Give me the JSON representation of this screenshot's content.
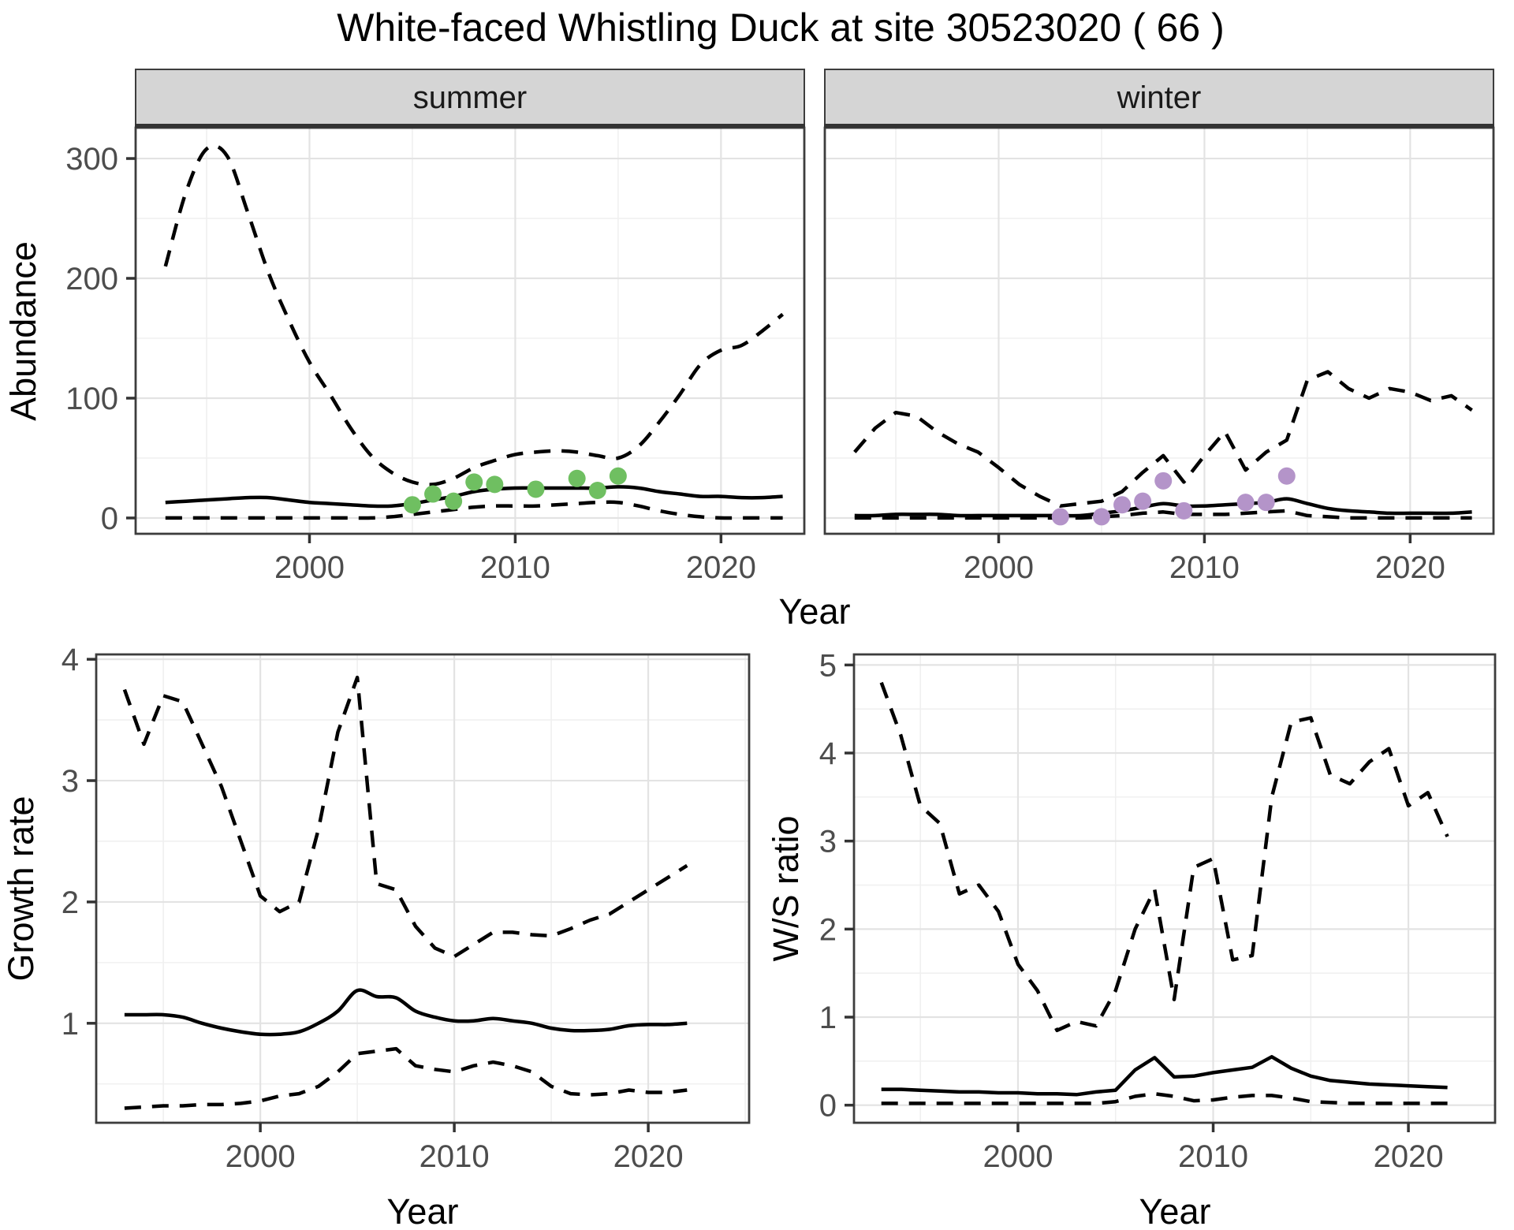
{
  "title": "White-faced Whistling Duck at site 30523020 ( 66 )",
  "colors": {
    "fit_line": "#000000",
    "ci_line": "#000000",
    "summer_points": "#6fbf61",
    "winter_points": "#b494c9",
    "strip_background": "#d5d5d5",
    "strip_text": "#1a1a1a",
    "panel_border": "#3d3d3d",
    "grid_major": "#e3e3e3",
    "grid_minor": "#f0f0f0",
    "tick_label": "#4d4d4d",
    "axis_title": "#000000",
    "title": "#000000"
  },
  "chart_data": {
    "type": "line",
    "title": "White-faced Whistling Duck at site 30523020 ( 66 )",
    "description": "Four-panel population model figure: modeled abundance (solid fit line, dashed 95% CI lines, observed counts as points) faceted by season, plus growth rate and winter/summer ratio panels.",
    "legend_position": "none",
    "grid": "on",
    "axis_labels": [
      {
        "id": "abundance-axis-label",
        "text": "Abundance"
      },
      {
        "id": "top-year-axis-label",
        "text": "Year"
      },
      {
        "id": "growth-rate-axis-label",
        "text": "Growth rate"
      },
      {
        "id": "growth-year-axis-label",
        "text": "Year"
      },
      {
        "id": "ws-ratio-axis-label",
        "text": "W/S ratio"
      },
      {
        "id": "ws-year-axis-label",
        "text": "Year"
      }
    ],
    "panels": [
      {
        "id": "summer",
        "facet": "summer",
        "x_range": [
          1991.55,
          2024.05
        ],
        "y_range": [
          -13.2,
          325.7
        ],
        "x_ticks": [
          2000,
          2010,
          2020
        ],
        "x_minor": [
          1995,
          2005,
          2015
        ],
        "y_ticks": [
          0,
          100,
          200,
          300
        ],
        "y_minor": [
          50,
          150,
          250
        ],
        "show_y_tick_labels": true,
        "smooth_fit": true,
        "smooth_ci": true,
        "series": {
          "years": [
            1993,
            1994,
            1995,
            1996,
            1997,
            1998,
            1999,
            2000,
            2001,
            2002,
            2003,
            2004,
            2005,
            2006,
            2007,
            2008,
            2009,
            2010,
            2011,
            2012,
            2013,
            2014,
            2015,
            2016,
            2017,
            2018,
            2019,
            2020,
            2021,
            2022,
            2023
          ],
          "fit": [
            13,
            14,
            15,
            16,
            17,
            17,
            15,
            13,
            12,
            11,
            10,
            10,
            12,
            15,
            18,
            22,
            24,
            25,
            25,
            25,
            25,
            25,
            26,
            25,
            22,
            20,
            18,
            18,
            17,
            17,
            18
          ],
          "upper": [
            210,
            272,
            308,
            302,
            255,
            205,
            165,
            130,
            103,
            75,
            52,
            38,
            30,
            28,
            33,
            42,
            48,
            53,
            55,
            56,
            55,
            52,
            50,
            60,
            80,
            103,
            128,
            140,
            144,
            156,
            170
          ],
          "lower": [
            0,
            0,
            0,
            0,
            0,
            0,
            0,
            0,
            0,
            0,
            0,
            1,
            3,
            5,
            7,
            9,
            10,
            10,
            10,
            11,
            12,
            13,
            13,
            10,
            6,
            3,
            1,
            0,
            0,
            0,
            0
          ]
        },
        "points": {
          "color_key": "summer_points",
          "data": [
            [
              2005,
              11
            ],
            [
              2006,
              20
            ],
            [
              2007,
              14
            ],
            [
              2008,
              30
            ],
            [
              2009,
              28
            ],
            [
              2011,
              24
            ],
            [
              2013,
              33
            ],
            [
              2014,
              23
            ],
            [
              2015,
              35
            ]
          ]
        }
      },
      {
        "id": "winter",
        "facet": "winter",
        "x_range": [
          1991.55,
          2024.05
        ],
        "y_range": [
          -13.2,
          325.7
        ],
        "x_ticks": [
          2000,
          2010,
          2020
        ],
        "x_minor": [
          1995,
          2005,
          2015
        ],
        "y_ticks": [
          0,
          100,
          200,
          300
        ],
        "y_minor": [
          50,
          150,
          250
        ],
        "show_y_tick_labels": false,
        "smooth_fit": true,
        "smooth_ci": false,
        "series": {
          "years": [
            1993,
            1994,
            1995,
            1996,
            1997,
            1998,
            1999,
            2000,
            2001,
            2002,
            2003,
            2004,
            2005,
            2006,
            2007,
            2008,
            2009,
            2010,
            2011,
            2012,
            2013,
            2014,
            2015,
            2016,
            2017,
            2018,
            2019,
            2020,
            2021,
            2022,
            2023
          ],
          "fit": [
            2,
            2,
            3,
            3,
            3,
            2,
            2,
            2,
            2,
            2,
            2,
            2,
            4,
            6,
            9,
            12,
            10,
            10,
            11,
            12,
            13,
            16,
            12,
            8,
            6,
            5,
            4,
            4,
            4,
            4,
            5
          ],
          "upper": [
            55,
            75,
            88,
            85,
            72,
            62,
            55,
            42,
            28,
            18,
            10,
            12,
            14,
            22,
            38,
            52,
            30,
            52,
            72,
            40,
            55,
            65,
            115,
            122,
            108,
            100,
            108,
            105,
            98,
            102,
            90
          ],
          "lower": [
            0,
            0,
            0,
            0,
            0,
            0,
            0,
            0,
            0,
            0,
            0,
            0,
            1,
            2,
            4,
            5,
            3,
            3,
            3,
            4,
            5,
            6,
            2,
            1,
            0,
            0,
            0,
            0,
            0,
            0,
            0
          ]
        },
        "points": {
          "color_key": "winter_points",
          "data": [
            [
              2003,
              1
            ],
            [
              2005,
              1
            ],
            [
              2006,
              11
            ],
            [
              2007,
              14
            ],
            [
              2008,
              31
            ],
            [
              2009,
              6
            ],
            [
              2012,
              13
            ],
            [
              2013,
              13
            ],
            [
              2014,
              35
            ]
          ]
        }
      },
      {
        "id": "growth",
        "facet": null,
        "x_range": [
          1991.54,
          2025.2
        ],
        "y_range": [
          0.18,
          4.04
        ],
        "x_ticks": [
          2000,
          2010,
          2020
        ],
        "x_minor": [
          1995,
          2005,
          2015,
          2025
        ],
        "y_ticks": [
          1,
          2,
          3,
          4
        ],
        "y_minor": [
          0.5,
          1.5,
          2.5,
          3.5
        ],
        "show_y_tick_labels": true,
        "smooth_fit": true,
        "smooth_ci": false,
        "series": {
          "years": [
            1993,
            1994,
            1995,
            1996,
            1997,
            1998,
            1999,
            2000,
            2001,
            2002,
            2003,
            2004,
            2005,
            2006,
            2007,
            2008,
            2009,
            2010,
            2011,
            2012,
            2013,
            2014,
            2015,
            2016,
            2017,
            2018,
            2019,
            2020,
            2021,
            2022
          ],
          "fit": [
            1.07,
            1.07,
            1.07,
            1.05,
            1.0,
            0.96,
            0.93,
            0.91,
            0.91,
            0.93,
            1.0,
            1.1,
            1.27,
            1.22,
            1.21,
            1.1,
            1.05,
            1.02,
            1.02,
            1.04,
            1.02,
            1.0,
            0.96,
            0.94,
            0.94,
            0.95,
            0.98,
            0.99,
            0.99,
            1.0
          ],
          "upper": [
            3.75,
            3.3,
            3.7,
            3.65,
            3.3,
            2.95,
            2.5,
            2.05,
            1.92,
            2.0,
            2.6,
            3.4,
            3.85,
            2.15,
            2.1,
            1.8,
            1.62,
            1.55,
            1.65,
            1.75,
            1.75,
            1.73,
            1.72,
            1.78,
            1.85,
            1.9,
            2.0,
            2.1,
            2.2,
            2.3
          ],
          "lower": [
            0.3,
            0.31,
            0.32,
            0.32,
            0.33,
            0.33,
            0.34,
            0.36,
            0.4,
            0.42,
            0.48,
            0.6,
            0.75,
            0.77,
            0.79,
            0.65,
            0.62,
            0.6,
            0.65,
            0.68,
            0.65,
            0.6,
            0.48,
            0.42,
            0.41,
            0.42,
            0.45,
            0.43,
            0.43,
            0.45
          ]
        },
        "points": null
      },
      {
        "id": "ws",
        "facet": null,
        "x_range": [
          1991.6,
          2024.44
        ],
        "y_range": [
          -0.2,
          5.12
        ],
        "x_ticks": [
          2000,
          2010,
          2020
        ],
        "x_minor": [
          1995,
          2005,
          2015
        ],
        "y_ticks": [
          0,
          1,
          2,
          3,
          4,
          5
        ],
        "y_minor": [
          0.5,
          1.5,
          2.5,
          3.5,
          4.5
        ],
        "show_y_tick_labels": true,
        "smooth_fit": false,
        "smooth_ci": false,
        "series": {
          "years": [
            1993,
            1994,
            1995,
            1996,
            1997,
            1998,
            1999,
            2000,
            2001,
            2002,
            2003,
            2004,
            2005,
            2006,
            2007,
            2008,
            2009,
            2010,
            2011,
            2012,
            2013,
            2014,
            2015,
            2016,
            2017,
            2018,
            2019,
            2020,
            2021,
            2022
          ],
          "fit": [
            0.18,
            0.18,
            0.17,
            0.16,
            0.15,
            0.15,
            0.14,
            0.14,
            0.13,
            0.13,
            0.12,
            0.15,
            0.17,
            0.4,
            0.54,
            0.32,
            0.33,
            0.37,
            0.4,
            0.43,
            0.55,
            0.42,
            0.33,
            0.28,
            0.26,
            0.24,
            0.23,
            0.22,
            0.21,
            0.2
          ],
          "upper": [
            4.8,
            4.2,
            3.4,
            3.2,
            2.4,
            2.5,
            2.2,
            1.6,
            1.3,
            0.85,
            0.95,
            0.9,
            1.3,
            2.0,
            2.45,
            1.2,
            2.7,
            2.8,
            1.65,
            1.7,
            3.5,
            4.35,
            4.4,
            3.75,
            3.65,
            3.9,
            4.05,
            3.4,
            3.55,
            3.05
          ],
          "lower": [
            0.02,
            0.02,
            0.02,
            0.02,
            0.02,
            0.02,
            0.02,
            0.02,
            0.02,
            0.02,
            0.02,
            0.02,
            0.04,
            0.1,
            0.13,
            0.1,
            0.05,
            0.06,
            0.09,
            0.11,
            0.11,
            0.08,
            0.04,
            0.03,
            0.02,
            0.02,
            0.02,
            0.02,
            0.02,
            0.02
          ]
        },
        "points": null
      }
    ]
  }
}
